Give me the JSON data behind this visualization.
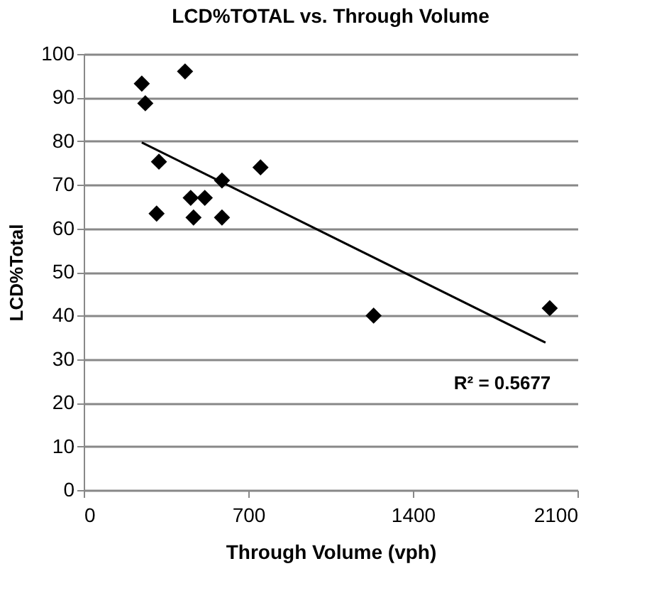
{
  "chart_data": {
    "type": "scatter",
    "title": "LCD%TOTAL vs. Through Volume",
    "xlabel": "Through Volume (vph)",
    "ylabel": "LCD%Total",
    "x": [
      247,
      262,
      431,
      320,
      310,
      455,
      467,
      515,
      588,
      588,
      752,
      1233,
      1982
    ],
    "series": [
      {
        "type": "scatter",
        "color": "#000000",
        "marker": "diamond",
        "values": [
          93.2,
          88.7,
          96,
          75.3,
          63.4,
          67,
          62.5,
          67,
          71,
          62.5,
          74,
          40,
          41.7
        ]
      },
      {
        "type": "line",
        "color": "#000000",
        "x": [
          247,
          1964
        ],
        "values": [
          79.7,
          33.8
        ]
      }
    ],
    "annotations": [
      "R² = 0.5677"
    ],
    "xlim": [
      0,
      2100
    ],
    "xticks": [
      0,
      700,
      1400,
      2100
    ],
    "ylim": [
      0,
      100
    ],
    "yticks": [
      0,
      10,
      20,
      30,
      40,
      50,
      60,
      70,
      80,
      90,
      100
    ],
    "grid": "y"
  }
}
